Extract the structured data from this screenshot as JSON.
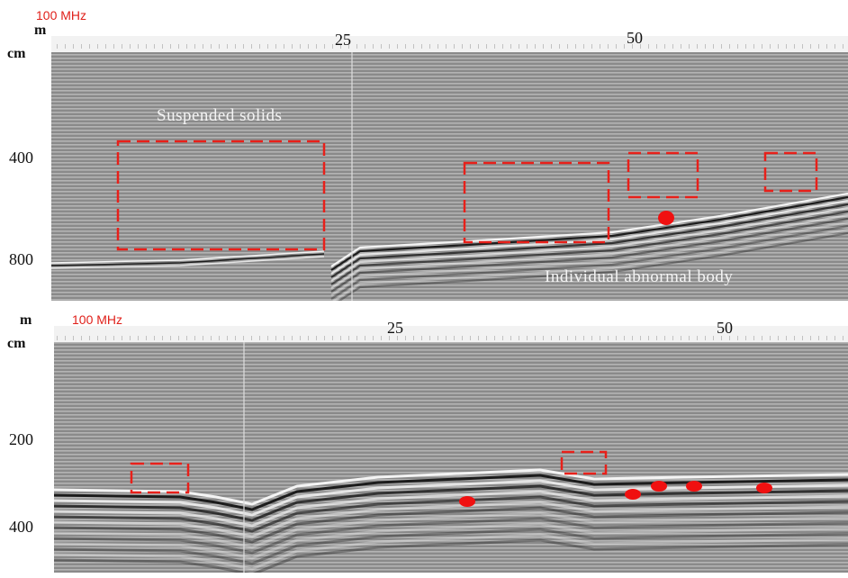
{
  "panels": [
    {
      "frequency": "100 MHz",
      "x_unit": "m",
      "y_unit": "cm",
      "x_ticks": [
        "25",
        "50"
      ],
      "y_ticks": [
        "400",
        "800"
      ],
      "annotations": [
        "Suspended solids",
        "Individual abnormal body"
      ]
    },
    {
      "frequency": "100 MHz",
      "x_unit": "m",
      "y_unit": "cm",
      "x_ticks": [
        "25",
        "50"
      ],
      "y_ticks": [
        "200",
        "400"
      ]
    }
  ]
}
